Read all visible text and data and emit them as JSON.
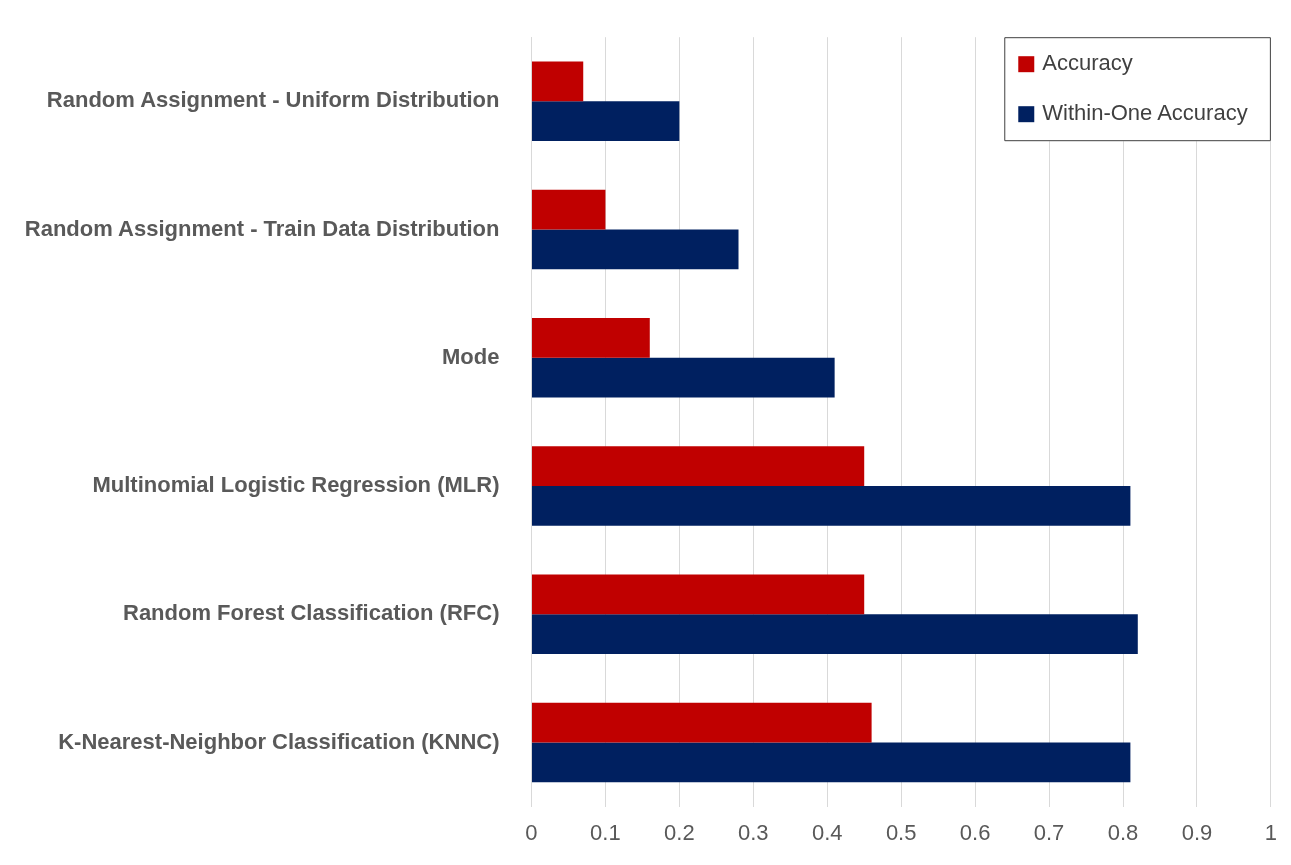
{
  "chart_data": {
    "type": "bar",
    "orientation": "horizontal",
    "categories": [
      "Random Assignment - Uniform Distribution",
      "Random Assignment - Train Data Distribution",
      "Mode",
      "Multinomial Logistic Regression (MLR)",
      "Random Forest Classification (RFC)",
      "K-Nearest-Neighbor Classification (KNNC)"
    ],
    "series": [
      {
        "name": "Accuracy",
        "color": "#c00000",
        "values": [
          0.07,
          0.1,
          0.16,
          0.45,
          0.45,
          0.46
        ]
      },
      {
        "name": "Within-One Accuracy",
        "color": "#002060",
        "values": [
          0.2,
          0.28,
          0.41,
          0.81,
          0.82,
          0.81
        ]
      }
    ],
    "xlim": [
      0,
      1
    ],
    "xticks": [
      0,
      0.1,
      0.2,
      0.3,
      0.4,
      0.5,
      0.6,
      0.7,
      0.8,
      0.9,
      1
    ],
    "grid": "x",
    "legend": "top right"
  }
}
